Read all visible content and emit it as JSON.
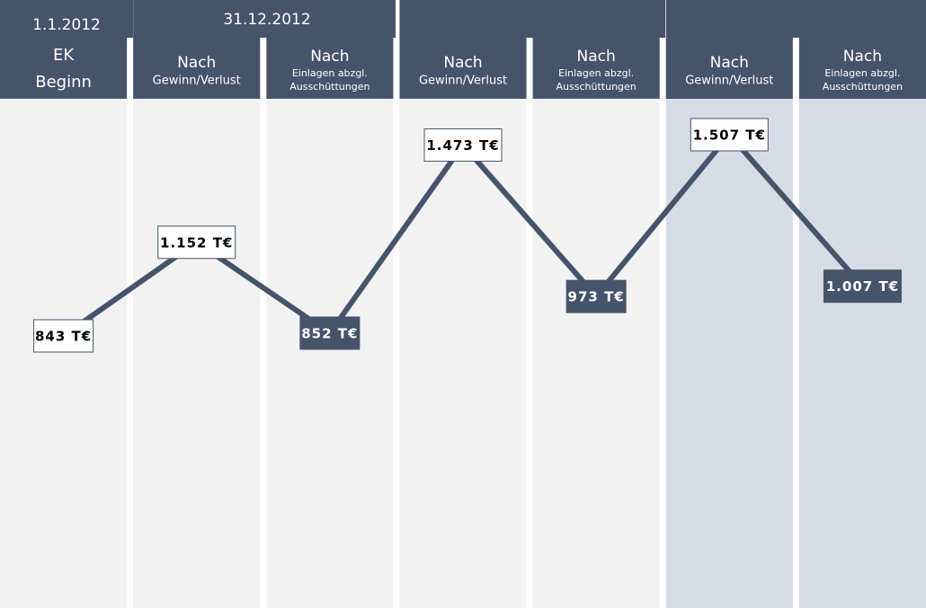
{
  "chart_data": {
    "type": "line",
    "header_dates": [
      "1.1.2012",
      "31.12.2012"
    ],
    "categories": [
      [
        "EK",
        "Beginn"
      ],
      [
        "Nach",
        "Gewinn/Verlust"
      ],
      [
        "Nach",
        "Einlagen abzgl.",
        "Ausschüttungen"
      ],
      [
        "Nach",
        "Gewinn/Verlust"
      ],
      [
        "Nach",
        "Einlagen abzgl.",
        "Ausschüttungen"
      ],
      [
        "Nach",
        "Gewinn/Verlust"
      ],
      [
        "Nach",
        "Einlagen abzgl.",
        "Ausschüttungen"
      ]
    ],
    "values": [
      843,
      1152,
      852,
      1473,
      973,
      1507,
      1007
    ],
    "value_labels": [
      "843 T€",
      "1.152 T€",
      "852 T€",
      "1.473 T€",
      "973 T€",
      "1.507 T€",
      "1.007 T€"
    ],
    "color": "#46546b"
  }
}
